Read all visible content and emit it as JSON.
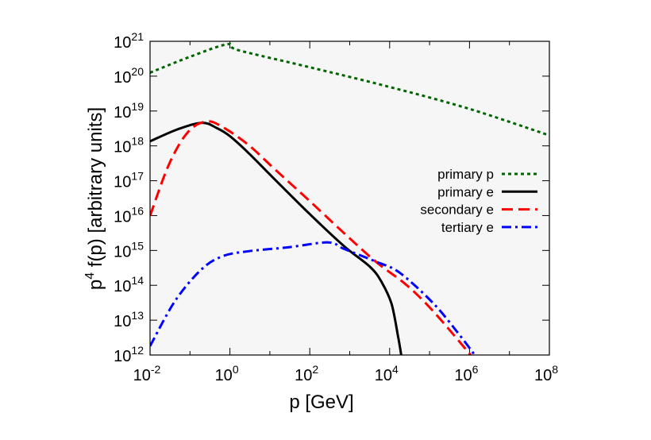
{
  "chart_data": {
    "type": "line",
    "title": "",
    "xlabel": "p [GeV]",
    "ylabel_main": "p",
    "ylabel_sup": "4",
    "ylabel_rest": " f(p) [arbitrary units]",
    "x_scale": "log",
    "y_scale": "log",
    "xlim": [
      0.01,
      100000000.0
    ],
    "ylim": [
      1000000000000.0,
      1e+21
    ],
    "grid": false,
    "legend_placement": "right",
    "background": "#f6f6f6",
    "x_ticks": [
      {
        "base": "10",
        "exp": "-2",
        "value": 0.01
      },
      {
        "base": "10",
        "exp": "0",
        "value": 1
      },
      {
        "base": "10",
        "exp": "2",
        "value": 100
      },
      {
        "base": "10",
        "exp": "4",
        "value": 10000.0
      },
      {
        "base": "10",
        "exp": "6",
        "value": 1000000.0
      },
      {
        "base": "10",
        "exp": "8",
        "value": 100000000.0
      }
    ],
    "y_ticks": [
      {
        "base": "10",
        "exp": "12",
        "value": 1000000000000.0
      },
      {
        "base": "10",
        "exp": "13",
        "value": 10000000000000.0
      },
      {
        "base": "10",
        "exp": "14",
        "value": 100000000000000.0
      },
      {
        "base": "10",
        "exp": "15",
        "value": 1000000000000000.0
      },
      {
        "base": "10",
        "exp": "16",
        "value": 1e+16
      },
      {
        "base": "10",
        "exp": "17",
        "value": 1e+17
      },
      {
        "base": "10",
        "exp": "18",
        "value": 1e+18
      },
      {
        "base": "10",
        "exp": "19",
        "value": 1e+19
      },
      {
        "base": "10",
        "exp": "20",
        "value": 1e+20
      },
      {
        "base": "10",
        "exp": "21",
        "value": 1e+21
      }
    ],
    "series": [
      {
        "name": "primary p",
        "color": "#006400",
        "style": "dotted",
        "x": [
          0.01,
          0.1,
          0.87,
          1.6,
          100,
          10000.0,
          1000000.0,
          100000000.0
        ],
        "y": [
          1.26e+20,
          3.6e+20,
          8.3e+20,
          5.6e+20,
          1.8e+20,
          4.9e+19,
          1.15e+19,
          2e+18
        ]
      },
      {
        "name": "primary e",
        "color": "#000000",
        "style": "solid",
        "x": [
          0.01,
          0.048,
          0.2,
          0.48,
          1,
          2.95,
          13.5,
          100,
          708,
          3310,
          6460,
          11200,
          16200,
          19500
        ],
        "y": [
          1.35e+18,
          2.95e+18,
          4.6e+18,
          3.2e+18,
          1.9e+18,
          6.2e+17,
          1.07e+17,
          1.1e+16,
          1350000000000000.0,
          330000000000000.0,
          117000000000000.0,
          29000000000000.0,
          3500000000000.0,
          1000000000000.0
        ]
      },
      {
        "name": "secondary e",
        "color": "#ff0000",
        "style": "dashed",
        "x": [
          0.01,
          0.03,
          0.089,
          0.257,
          0.646,
          2.95,
          13.5,
          100,
          708,
          4470,
          27500,
          129000,
          1070000
        ],
        "y": [
          9800000000000000.0,
          3e+17,
          2.5e+18,
          5e+18,
          3.5e+18,
          1.05e+18,
          2.1e+17,
          2.6e+16,
          3200000000000000.0,
          480000000000000.0,
          98000000000000.0,
          17000000000000.0,
          1000000000000.0
        ]
      },
      {
        "name": "tertiary e",
        "color": "#0000ff",
        "style": "dash-dot",
        "x": [
          0.01,
          0.042,
          0.19,
          0.646,
          2.95,
          28.8,
          288,
          708,
          4470,
          17800,
          129000,
          590000,
          1350000
        ],
        "y": [
          1800000000000.0,
          35000000000000.0,
          280000000000000.0,
          680000000000000.0,
          950000000000000.0,
          1230000000000000.0,
          1700000000000000.0,
          1120000000000000.0,
          480000000000000.0,
          230000000000000.0,
          29000000000000.0,
          3500000000000.0,
          1000000000000.0
        ]
      }
    ]
  }
}
